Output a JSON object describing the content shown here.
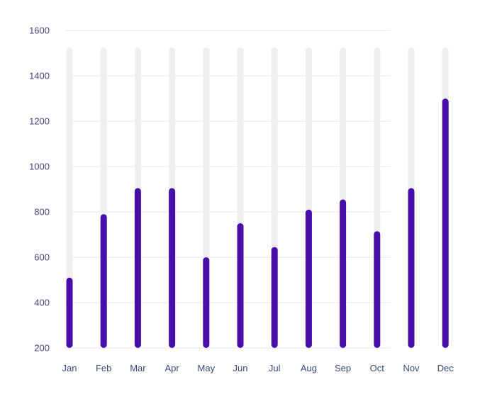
{
  "chart_data": {
    "type": "bar",
    "title": "",
    "xlabel": "",
    "ylabel": "",
    "categories": [
      "Jan",
      "Feb",
      "Mar",
      "Apr",
      "May",
      "Jun",
      "Jul",
      "Aug",
      "Sep",
      "Oct",
      "Nov",
      "Dec"
    ],
    "values": [
      510,
      790,
      905,
      905,
      600,
      750,
      645,
      810,
      855,
      715,
      905,
      1300
    ],
    "track_max": 1525,
    "ylim": [
      200,
      1600
    ],
    "yticks": [
      1600,
      1400,
      1200,
      1000,
      800,
      600,
      400,
      200
    ],
    "grid": true,
    "legend": "none",
    "colors": {
      "bar": "#4a0ea8",
      "track": "#efefef",
      "grid": "#e6e6e6",
      "tick_text": "#3b4a78"
    }
  }
}
